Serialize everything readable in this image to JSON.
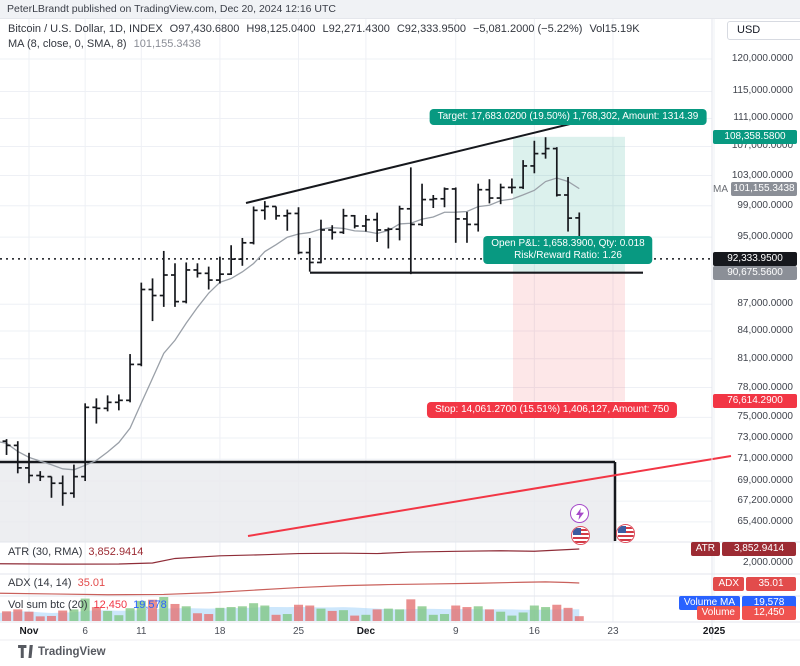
{
  "header": {
    "publish_info": "PeterLBrandt published on TradingView.com, Dec 20, 2024 12:16 UTC"
  },
  "legend": {
    "title": "Bitcoin / U.S. Dollar, 1D, INDEX",
    "o": "O97,430.6800",
    "h": "H98,125.0400",
    "l": "L92,271.4300",
    "c": "C92,333.9500",
    "change": "−5,081.2000 (−5.22%)",
    "vol": "Vol15.19K",
    "ma_title": "MA (8, close, 0, SMA, 8)",
    "ma_value": "101,155.3438"
  },
  "currency_button": "USD",
  "position_tool": {
    "target_label": "Target: 17,683.0200 (19.50%) 1,768,302, Amount: 1314.39",
    "open_pnl_line1": "Open P&L: 1,658.3900, Qty: 0.018",
    "open_pnl_line2": "Risk/Reward Ratio: 1.26",
    "stop_label": "Stop: 14,061.2700 (15.51%) 1,406,127, Amount: 750",
    "entry_price": 90675.56,
    "target_price": 108358.58,
    "stop_price": 76614.29
  },
  "price_axis": {
    "target_badge": "108,358.5800",
    "ma_badge_label": "MA",
    "ma_badge": "101,155.3438",
    "ma_price": 101155.3438,
    "last_badge": "92,333.9500",
    "last_price": 92333.95,
    "entry_badge": "90,675.5600",
    "stop_badge": "76,614.2900",
    "atr_scale_label": "2,000.0000"
  },
  "indicators": {
    "atr": {
      "title": "ATR (30, RMA)",
      "value": "3,852.9414",
      "badge_label": "ATR",
      "badge_value": "3,852.9414"
    },
    "adx": {
      "title": "ADX (14, 14)",
      "value": "35.01",
      "badge_label": "ADX",
      "badge_value": "35.01"
    },
    "vol": {
      "title": "Vol sum btc (20)",
      "value_red": "12,450",
      "value_blue": "19,578",
      "ma_badge_label": "Volume MA",
      "ma_badge_value": "19,578",
      "badge_label": "Volume",
      "badge_value": "12,450"
    }
  },
  "footer": {
    "logo_text": "TradingView"
  },
  "colors": {
    "accent_teal": "#089981",
    "accent_red": "#f23645",
    "atr_dark_red": "#9c2b33",
    "adx_red": "#e24c4c",
    "volume_ma_blue": "#2962ff",
    "last_price_black": "#16181d",
    "neutral_gray_badge": "#8b8f97",
    "bar_black": "#16181d",
    "ma_line_gray": "#9aa0a8",
    "vol_up_green": "#81c784",
    "vol_down_red": "#e57373",
    "vol_ma_area_blue": "#90caf9",
    "trendline_red": "#f23645"
  },
  "chart_data": {
    "type": "bar",
    "symbol": "Bitcoin / U.S. Dollar",
    "timeframe": "1D",
    "scale": "log",
    "ylim": [
      63000,
      123000
    ],
    "ma": {
      "period": 8,
      "type": "SMA",
      "value": 101155.3438
    },
    "price_ticks": [
      {
        "value": 120000,
        "label": "120,000.0000"
      },
      {
        "value": 115000,
        "label": "115,000.0000"
      },
      {
        "value": 111000,
        "label": "111,000.0000"
      },
      {
        "value": 107000,
        "label": "107,000.0000"
      },
      {
        "value": 103000,
        "label": "103,000.0000"
      },
      {
        "value": 99000,
        "label": "99,000.0000"
      },
      {
        "value": 95000,
        "label": "95,000.0000"
      },
      {
        "value": 87000,
        "label": "87,000.0000"
      },
      {
        "value": 84000,
        "label": "84,000.0000"
      },
      {
        "value": 81000,
        "label": "81,000.0000"
      },
      {
        "value": 78000,
        "label": "78,000.0000"
      },
      {
        "value": 75000,
        "label": "75,000.0000"
      },
      {
        "value": 73000,
        "label": "73,000.0000"
      },
      {
        "value": 71000,
        "label": "71,000.0000"
      },
      {
        "value": 69000,
        "label": "69,000.0000"
      },
      {
        "value": 67200,
        "label": "67,200.0000"
      },
      {
        "value": 65400,
        "label": "65,400.0000"
      }
    ],
    "time_ticks": [
      {
        "label": "Nov",
        "day": 0,
        "strong": true
      },
      {
        "label": "6",
        "day": 5,
        "strong": false
      },
      {
        "label": "11",
        "day": 10,
        "strong": false
      },
      {
        "label": "18",
        "day": 17,
        "strong": false
      },
      {
        "label": "25",
        "day": 24,
        "strong": false
      },
      {
        "label": "Dec",
        "day": 30,
        "strong": true
      },
      {
        "label": "9",
        "day": 38,
        "strong": false
      },
      {
        "label": "16",
        "day": 45,
        "strong": false
      },
      {
        "label": "23",
        "day": 52,
        "strong": false
      },
      {
        "label": "2025",
        "day": 61,
        "strong": true
      }
    ],
    "bars": [
      [
        -3,
        72900,
        73000,
        71800,
        72700,
        20
      ],
      [
        -2,
        72700,
        72900,
        71400,
        72300,
        25
      ],
      [
        -1,
        72300,
        72700,
        69700,
        70200,
        30
      ],
      [
        0,
        70200,
        71600,
        68800,
        69500,
        24
      ],
      [
        1,
        69500,
        69900,
        69000,
        69400,
        12
      ],
      [
        2,
        69400,
        69400,
        67500,
        68800,
        13
      ],
      [
        3,
        68800,
        69500,
        66800,
        67900,
        27
      ],
      [
        4,
        67900,
        70500,
        67500,
        69400,
        30
      ],
      [
        5,
        69400,
        76400,
        69000,
        76000,
        58
      ],
      [
        6,
        76000,
        76900,
        74400,
        75900,
        36
      ],
      [
        7,
        75900,
        77200,
        75600,
        76500,
        26
      ],
      [
        8,
        76500,
        77300,
        75700,
        76700,
        15
      ],
      [
        9,
        76700,
        81500,
        76500,
        80400,
        33
      ],
      [
        10,
        80400,
        89500,
        80200,
        88700,
        52
      ],
      [
        11,
        88700,
        90000,
        85100,
        88000,
        55
      ],
      [
        12,
        88000,
        93300,
        86700,
        90400,
        62
      ],
      [
        13,
        90400,
        91800,
        86700,
        87300,
        44
      ],
      [
        14,
        87300,
        91900,
        87100,
        91000,
        38
      ],
      [
        15,
        91000,
        91800,
        90100,
        90600,
        20
      ],
      [
        16,
        90600,
        91400,
        88700,
        89800,
        18
      ],
      [
        17,
        89800,
        92600,
        89400,
        90500,
        34
      ],
      [
        18,
        90500,
        94000,
        90400,
        92300,
        36
      ],
      [
        19,
        92300,
        94900,
        91500,
        94300,
        38
      ],
      [
        20,
        94300,
        98900,
        94100,
        98400,
        46
      ],
      [
        21,
        98400,
        99600,
        97200,
        98900,
        40
      ],
      [
        22,
        98900,
        98900,
        97200,
        97700,
        16
      ],
      [
        23,
        97700,
        98500,
        95800,
        98000,
        18
      ],
      [
        24,
        98000,
        98800,
        92900,
        93100,
        42
      ],
      [
        25,
        93100,
        94900,
        90800,
        91900,
        40
      ],
      [
        26,
        91900,
        97200,
        91800,
        95900,
        32
      ],
      [
        27,
        95900,
        96500,
        94700,
        95600,
        26
      ],
      [
        28,
        95600,
        98600,
        95400,
        97700,
        28
      ],
      [
        29,
        97700,
        97800,
        96100,
        96400,
        14
      ],
      [
        30,
        96400,
        97800,
        95700,
        97200,
        16
      ],
      [
        31,
        97200,
        98100,
        94400,
        95900,
        30
      ],
      [
        32,
        95900,
        96200,
        93600,
        96000,
        32
      ],
      [
        33,
        96000,
        99000,
        94600,
        98600,
        30
      ],
      [
        34,
        98600,
        104100,
        90500,
        96600,
        56
      ],
      [
        35,
        96600,
        101900,
        96400,
        99800,
        38
      ],
      [
        36,
        99800,
        100400,
        98700,
        99900,
        16
      ],
      [
        37,
        99900,
        101400,
        98800,
        101200,
        18
      ],
      [
        38,
        101200,
        101400,
        94300,
        97300,
        40
      ],
      [
        39,
        97300,
        98200,
        94300,
        96600,
        36
      ],
      [
        40,
        96600,
        101900,
        95700,
        101100,
        38
      ],
      [
        41,
        101100,
        102500,
        99300,
        100000,
        30
      ],
      [
        42,
        100000,
        101900,
        99200,
        101400,
        24
      ],
      [
        43,
        101400,
        102600,
        100600,
        101400,
        14
      ],
      [
        44,
        101400,
        105100,
        101200,
        104300,
        22
      ],
      [
        45,
        104300,
        107800,
        103300,
        106000,
        40
      ],
      [
        46,
        106000,
        108300,
        105300,
        106700,
        36
      ],
      [
        47,
        106700,
        106900,
        100200,
        100400,
        42
      ],
      [
        48,
        100400,
        102800,
        95700,
        97400,
        34
      ],
      [
        49,
        97430.68,
        98125.04,
        92271.43,
        92333.95,
        12.45
      ]
    ],
    "atr_series": [
      [
        -3,
        1900
      ],
      [
        3,
        1850
      ],
      [
        8,
        1870
      ],
      [
        11,
        2000
      ],
      [
        13,
        2600
      ],
      [
        17,
        2950
      ],
      [
        21,
        3100
      ],
      [
        24,
        3250
      ],
      [
        28,
        3300
      ],
      [
        31,
        3250
      ],
      [
        34,
        3450
      ],
      [
        38,
        3550
      ],
      [
        42,
        3620
      ],
      [
        45,
        3560
      ],
      [
        47,
        3700
      ],
      [
        49,
        3852.94
      ]
    ],
    "adx_series": [
      [
        -3,
        27.2
      ],
      [
        2,
        26.6
      ],
      [
        7,
        26.0
      ],
      [
        12,
        26.2
      ],
      [
        16,
        27.5
      ],
      [
        20,
        29.5
      ],
      [
        24,
        31.5
      ],
      [
        28,
        33.0
      ],
      [
        32,
        33.8
      ],
      [
        36,
        34.3
      ],
      [
        40,
        34.8
      ],
      [
        44,
        35.6
      ],
      [
        46,
        35.9
      ],
      [
        48,
        35.4
      ],
      [
        49,
        35.01
      ]
    ],
    "volume_last": 12450,
    "volume_ma_last": 19578
  }
}
